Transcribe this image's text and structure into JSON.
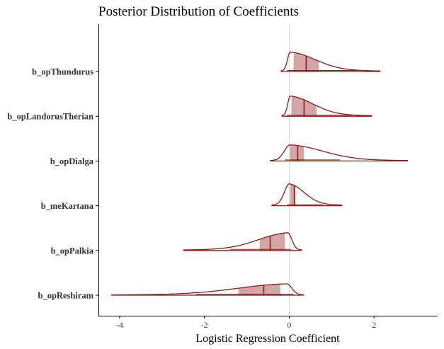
{
  "chart_data": {
    "type": "area",
    "title": "Posterior Distribution of Coefficients",
    "xlabel": "Logistic Regression Coefficient",
    "ylabel": "",
    "xlim": [
      -4.5,
      3.5
    ],
    "x_ticks": [
      -4,
      -2,
      0,
      2
    ],
    "x_tick_labels": [
      "-4",
      "-2",
      "0",
      "2"
    ],
    "reference_line_x": 0,
    "colors": {
      "line": "#8b1a1a",
      "fill": "#d4a5a5",
      "reference": "#d9d9d9",
      "axis": "#000000"
    },
    "series": [
      {
        "name": "b_opThundurus",
        "min": -0.2,
        "max": 2.15,
        "mode": 0.02,
        "median": 0.4,
        "interval_50": [
          0.1,
          0.7
        ],
        "interval_90": [
          -0.05,
          1.6
        ]
      },
      {
        "name": "b_opLandorusTherian",
        "min": -0.18,
        "max": 1.95,
        "mode": 0.02,
        "median": 0.35,
        "interval_50": [
          0.05,
          0.65
        ],
        "interval_90": [
          -0.05,
          1.5
        ]
      },
      {
        "name": "b_opDialga",
        "min": -0.45,
        "max": 2.8,
        "mode": 0.01,
        "median": 0.2,
        "interval_50": [
          0.02,
          0.35
        ],
        "interval_90": [
          -0.1,
          1.2
        ]
      },
      {
        "name": "b_meKartana",
        "min": -0.42,
        "max": 1.25,
        "mode": 0.0,
        "median": 0.12,
        "interval_50": [
          0.02,
          0.15
        ],
        "interval_90": [
          -0.05,
          0.8
        ]
      },
      {
        "name": "b_opPalkia",
        "min": -2.5,
        "max": 0.3,
        "mode": -0.03,
        "median": -0.45,
        "interval_50": [
          -0.7,
          -0.1
        ],
        "interval_90": [
          -1.4,
          0.05
        ]
      },
      {
        "name": "b_opReshiram",
        "min": -4.2,
        "max": 0.35,
        "mode": -0.05,
        "median": -0.6,
        "interval_50": [
          -1.2,
          -0.2
        ],
        "interval_90": [
          -2.2,
          0.1
        ]
      }
    ],
    "grid": false
  }
}
